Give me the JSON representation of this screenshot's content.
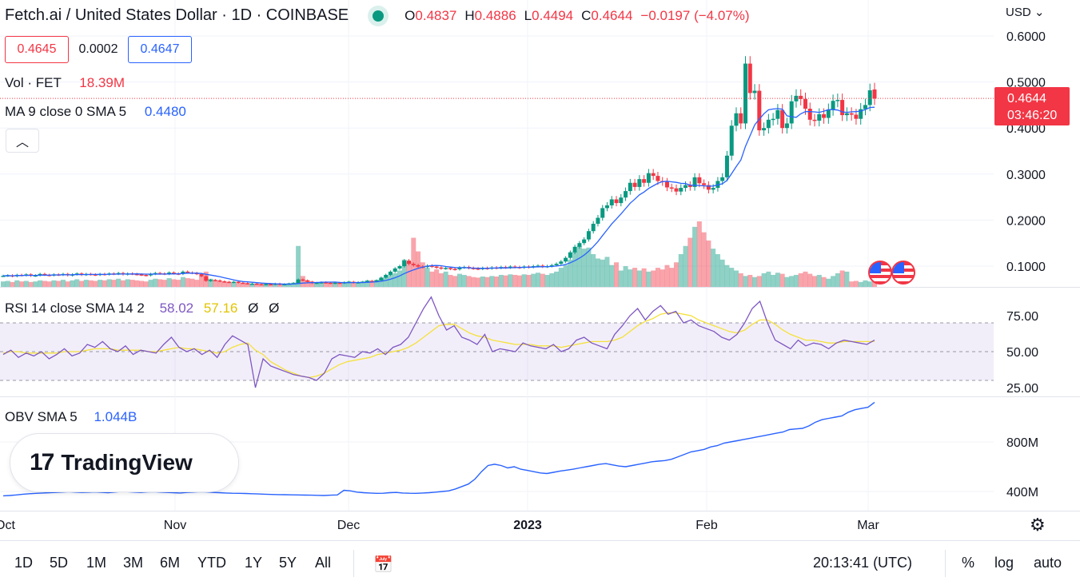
{
  "header": {
    "title": "Fetch.ai / United States Dollar · 1D · COINBASE",
    "ohlc": [
      {
        "k": "O",
        "v": "0.4837"
      },
      {
        "k": "H",
        "v": "0.4886"
      },
      {
        "k": "L",
        "v": "0.4494"
      },
      {
        "k": "C",
        "v": "0.4644"
      },
      {
        "k": "",
        "v": "−0.0197 (−4.07%)"
      }
    ],
    "bid": "0.4645",
    "spread": "0.0002",
    "ask": "0.4647",
    "vol_label": "Vol · FET",
    "vol_value": "18.39M",
    "ma_label": "MA 9 close 0 SMA 5",
    "ma_value": "0.4480",
    "collapse_icon": "chevron-up-icon",
    "currency": "USD",
    "price_tag": "0.4644",
    "countdown": "03:46:20"
  },
  "rsi": {
    "label": "RSI 14 close SMA 14 2",
    "v1": "58.02",
    "v2": "57.16",
    "v3": "Ø",
    "v4": "Ø"
  },
  "obv": {
    "label": "OBV SMA 5",
    "value": "1.044B"
  },
  "logo": "TradingView",
  "toolbar": {
    "ranges": [
      "1D",
      "5D",
      "1M",
      "3M",
      "6M",
      "YTD",
      "1Y",
      "5Y",
      "All"
    ],
    "calendar_icon": "calendar-icon",
    "time": "20:13:41 (UTC)",
    "percent": "%",
    "log": "log",
    "auto": "auto",
    "settings_icon": "gear-icon"
  },
  "colors": {
    "up": "#089981",
    "down": "#f23645",
    "ma": "#2962ff",
    "rsi": "#7e57c2",
    "rsi_sma": "#f5e13d",
    "obv": "#2962ff"
  },
  "chart_data": [
    {
      "type": "candlestick",
      "title": "Fetch.ai / United States Dollar · 1D · COINBASE",
      "x_ticks": [
        "Nov",
        "Dec",
        "2023",
        "Feb",
        "Mar"
      ],
      "y_ticks": [
        "0.6000",
        "0.5000",
        "0.4000",
        "0.3000",
        "0.2000",
        "0.1000"
      ],
      "ylim": [
        0.055,
        0.63
      ],
      "close": [
        0.079,
        0.08,
        0.078,
        0.081,
        0.08,
        0.082,
        0.079,
        0.08,
        0.083,
        0.081,
        0.08,
        0.082,
        0.081,
        0.083,
        0.08,
        0.082,
        0.084,
        0.081,
        0.083,
        0.082,
        0.081,
        0.083,
        0.082,
        0.084,
        0.083,
        0.085,
        0.082,
        0.084,
        0.083,
        0.082,
        0.081,
        0.08,
        0.083,
        0.085,
        0.084,
        0.083,
        0.086,
        0.084,
        0.083,
        0.088,
        0.086,
        0.085,
        0.083,
        0.078,
        0.068,
        0.07,
        0.069,
        0.067,
        0.066,
        0.065,
        0.066,
        0.064,
        0.063,
        0.062,
        0.062,
        0.061,
        0.06,
        0.061,
        0.06,
        0.062,
        0.06,
        0.061,
        0.062,
        0.063,
        0.071,
        0.069,
        0.066,
        0.063,
        0.064,
        0.065,
        0.064,
        0.063,
        0.064,
        0.063,
        0.065,
        0.066,
        0.064,
        0.065,
        0.066,
        0.068,
        0.067,
        0.069,
        0.075,
        0.081,
        0.088,
        0.095,
        0.1,
        0.112,
        0.105,
        0.102,
        0.099,
        0.098,
        0.101,
        0.099,
        0.097,
        0.095,
        0.096,
        0.094,
        0.093,
        0.097,
        0.098,
        0.096,
        0.095,
        0.094,
        0.096,
        0.095,
        0.097,
        0.096,
        0.098,
        0.097,
        0.099,
        0.098,
        0.097,
        0.099,
        0.098,
        0.1,
        0.101,
        0.099,
        0.1,
        0.102,
        0.105,
        0.11,
        0.118,
        0.13,
        0.142,
        0.15,
        0.158,
        0.176,
        0.192,
        0.205,
        0.226,
        0.232,
        0.245,
        0.237,
        0.249,
        0.263,
        0.281,
        0.272,
        0.289,
        0.281,
        0.302,
        0.296,
        0.285,
        0.283,
        0.271,
        0.269,
        0.262,
        0.27,
        0.276,
        0.272,
        0.293,
        0.28,
        0.276,
        0.266,
        0.27,
        0.285,
        0.293,
        0.34,
        0.405,
        0.432,
        0.41,
        0.54,
        0.476,
        0.481,
        0.395,
        0.4,
        0.418,
        0.42,
        0.439,
        0.4,
        0.41,
        0.458,
        0.47,
        0.463,
        0.442,
        0.418,
        0.416,
        0.43,
        0.422,
        0.44,
        0.459,
        0.461,
        0.428,
        0.432,
        0.429,
        0.42,
        0.441,
        0.45,
        0.482,
        0.464
      ],
      "rsi": [
        48,
        51,
        46,
        49,
        47,
        50,
        45,
        48,
        52,
        47,
        49,
        55,
        53,
        57,
        52,
        50,
        54,
        48,
        51,
        50,
        49,
        55,
        60,
        53,
        50,
        52,
        48,
        51,
        46,
        55,
        61,
        58,
        55,
        25,
        45,
        40,
        38,
        36,
        34,
        33,
        32,
        30,
        35,
        45,
        48,
        47,
        46,
        50,
        49,
        52,
        48,
        53,
        55,
        60,
        70,
        80,
        88,
        75,
        65,
        68,
        60,
        58,
        55,
        62,
        50,
        52,
        51,
        50,
        56,
        54,
        53,
        52,
        55,
        50,
        52,
        58,
        60,
        56,
        54,
        52,
        62,
        68,
        75,
        80,
        72,
        78,
        82,
        76,
        78,
        70,
        72,
        68,
        66,
        64,
        60,
        58,
        62,
        70,
        80,
        85,
        70,
        58,
        55,
        52,
        58,
        54,
        56,
        55,
        52,
        56,
        58,
        57,
        56,
        55,
        58
      ],
      "rsi_sma": [
        49,
        50,
        50,
        49,
        49,
        49,
        49,
        49,
        50,
        50,
        50,
        51,
        52,
        52,
        52,
        51,
        51,
        51,
        51,
        50,
        50,
        51,
        52,
        53,
        52,
        52,
        51,
        50,
        49,
        50,
        53,
        55,
        56,
        51,
        48,
        43,
        40,
        37,
        35,
        33,
        32,
        33,
        35,
        38,
        41,
        43,
        44,
        45,
        46,
        48,
        49,
        50,
        51,
        53,
        56,
        60,
        64,
        68,
        69,
        69,
        66,
        63,
        61,
        60,
        58,
        57,
        56,
        55,
        55,
        55,
        54,
        54,
        54,
        53,
        54,
        55,
        56,
        57,
        57,
        57,
        58,
        60,
        64,
        68,
        71,
        73,
        76,
        77,
        77,
        76,
        75,
        72,
        70,
        68,
        66,
        64,
        63,
        65,
        69,
        72,
        72,
        69,
        65,
        62,
        60,
        58,
        58,
        57,
        56,
        56,
        57,
        57,
        57,
        57,
        57
      ],
      "obv": [
        365,
        368,
        372,
        378,
        382,
        385,
        388,
        390,
        392,
        395,
        398,
        395,
        392,
        394,
        396,
        393,
        390,
        395,
        400,
        398,
        395,
        392,
        396,
        398,
        395,
        392,
        390,
        388,
        392,
        395,
        398,
        396,
        392,
        390,
        388,
        386,
        385,
        384,
        382,
        380,
        378,
        376,
        375,
        374,
        373,
        372,
        371,
        370,
        369,
        368,
        370,
        372,
        410,
        405,
        395,
        390,
        388,
        385,
        386,
        390,
        392,
        388,
        386,
        385,
        388,
        390,
        395,
        400,
        405,
        420,
        440,
        460,
        500,
        560,
        610,
        620,
        610,
        590,
        600,
        580,
        570,
        560,
        550,
        545,
        555,
        565,
        572,
        580,
        590,
        600,
        610,
        620,
        625,
        615,
        605,
        600,
        610,
        620,
        630,
        640,
        645,
        650,
        660,
        680,
        700,
        720,
        730,
        740,
        760,
        770,
        790,
        800,
        810,
        820,
        830,
        840,
        850,
        860,
        870,
        880,
        900,
        905,
        910,
        930,
        960,
        980,
        990,
        1000,
        1010,
        1040,
        1060,
        1070,
        1080,
        1120
      ],
      "vol": [
        10,
        11,
        9,
        12,
        10,
        11,
        9,
        10,
        12,
        11,
        10,
        12,
        11,
        13,
        10,
        12,
        14,
        11,
        13,
        12,
        11,
        13,
        12,
        14,
        13,
        15,
        12,
        14,
        13,
        12,
        11,
        10,
        13,
        15,
        14,
        13,
        16,
        14,
        13,
        18,
        16,
        15,
        13,
        20,
        28,
        15,
        12,
        10,
        9,
        8,
        8,
        7,
        7,
        6,
        6,
        5,
        5,
        6,
        5,
        6,
        5,
        6,
        7,
        8,
        75,
        20,
        12,
        10,
        8,
        9,
        8,
        7,
        8,
        7,
        9,
        10,
        8,
        9,
        10,
        12,
        11,
        13,
        15,
        18,
        22,
        25,
        30,
        50,
        45,
        90,
        65,
        45,
        35,
        28,
        32,
        25,
        28,
        22,
        20,
        24,
        22,
        20,
        18,
        17,
        19,
        18,
        20,
        19,
        22,
        21,
        23,
        22,
        21,
        23,
        22,
        24,
        26,
        24,
        22,
        25,
        28,
        35,
        40,
        50,
        65,
        75,
        70,
        72,
        60,
        52,
        50,
        55,
        40,
        45,
        30,
        38,
        32,
        35,
        30,
        34,
        28,
        30,
        35,
        32,
        40,
        35,
        45,
        60,
        75,
        90,
        110,
        120,
        100,
        85,
        70,
        60,
        50,
        40,
        35,
        30,
        25,
        20,
        22,
        18,
        20,
        25,
        28,
        22,
        26,
        24,
        18,
        20,
        22,
        25,
        28,
        24,
        20,
        22,
        18,
        15,
        20,
        25,
        30,
        28
      ],
      "up_candles_end": true
    }
  ]
}
